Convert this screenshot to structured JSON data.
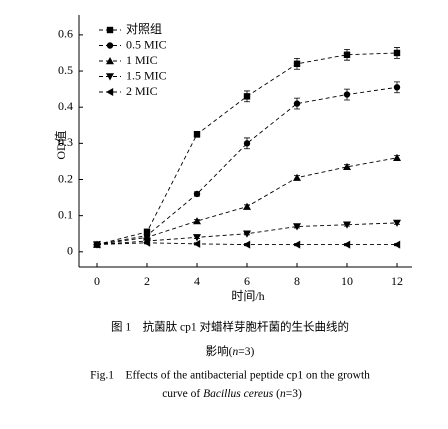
{
  "chart_data": {
    "type": "line",
    "x_label": "时间/h",
    "y_label": "OD值",
    "x": [
      0,
      2,
      4,
      6,
      8,
      10,
      12
    ],
    "series": [
      {
        "name": "对照组",
        "color": "#000000",
        "marker": "square",
        "values": [
          0.02,
          0.055,
          0.325,
          0.43,
          0.52,
          0.545,
          0.55
        ],
        "errors": [
          0.004,
          0.008,
          0.008,
          0.015,
          0.015,
          0.015,
          0.015
        ]
      },
      {
        "name": "0.5 MIC",
        "color": "#000000",
        "marker": "circle",
        "values": [
          0.02,
          0.045,
          0.16,
          0.3,
          0.41,
          0.435,
          0.455
        ],
        "errors": [
          0.004,
          0.006,
          0.006,
          0.015,
          0.015,
          0.015,
          0.015
        ]
      },
      {
        "name": "1 MIC",
        "color": "#000000",
        "marker": "triangle-up",
        "values": [
          0.02,
          0.04,
          0.085,
          0.125,
          0.205,
          0.235,
          0.26
        ],
        "errors": [
          0.003,
          0.004,
          0.004,
          0.005,
          0.006,
          0.006,
          0.006
        ]
      },
      {
        "name": "1.5 MIC",
        "color": "#000000",
        "marker": "triangle-down",
        "values": [
          0.02,
          0.03,
          0.04,
          0.05,
          0.07,
          0.075,
          0.08
        ],
        "errors": [
          0.003,
          0.003,
          0.003,
          0.003,
          0.004,
          0.004,
          0.004
        ]
      },
      {
        "name": "2 MIC",
        "color": "#000000",
        "marker": "triangle-left",
        "values": [
          0.02,
          0.025,
          0.022,
          0.02,
          0.02,
          0.02,
          0.02
        ],
        "errors": [
          0.003,
          0.003,
          0.003,
          0.003,
          0.003,
          0.003,
          0.003
        ]
      }
    ],
    "xlim": [
      -0.72,
      12.6
    ],
    "ylim": [
      -0.042,
      0.655
    ],
    "xticks": [
      0,
      2,
      4,
      6,
      8,
      10,
      12
    ],
    "yticks": [
      0,
      0.1,
      0.2,
      0.3,
      0.4,
      0.5,
      0.6
    ],
    "legend": "upper left",
    "line_style": "dashed"
  },
  "caption": {
    "cn_line1": "图 1　抗菌肽 cp1 对蜡样芽胞杆菌的生长曲线的",
    "cn_line2": [
      "影响(",
      "n",
      "=3)"
    ],
    "en_line1": "Fig.1　Effects of the antibacterial peptide cp1 on the growth",
    "en_line2": [
      "curve of ",
      "Bacillus cereus",
      " (",
      "n",
      "=3)"
    ]
  }
}
